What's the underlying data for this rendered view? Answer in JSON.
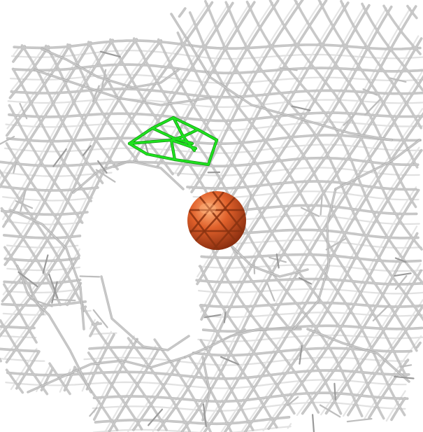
{
  "scene": {
    "background_color": "#ffffff",
    "mesh_color": "#c8c8c8",
    "mesh_shadow_color": "#8a8a8a",
    "ligand_color": "#1fe21f",
    "atom_color": "#e0602a",
    "atom_highlight_color": "#ffb27a",
    "atom_shadow_color": "#8a2e10"
  }
}
